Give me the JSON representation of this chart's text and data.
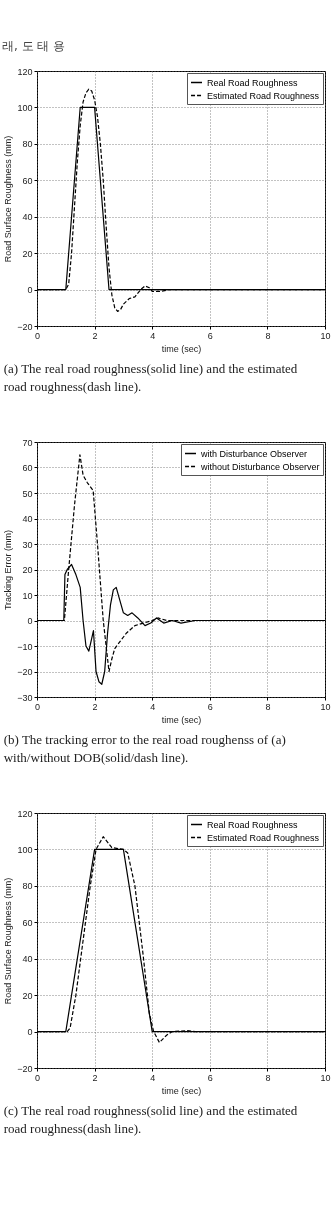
{
  "chart_data": [
    {
      "type": "line",
      "xlabel": "time (sec)",
      "ylabel": "Road Surface Roughness (mm)",
      "xlim": [
        0,
        10
      ],
      "ylim": [
        -20,
        120
      ],
      "xticks": [
        0,
        2,
        4,
        6,
        8,
        10
      ],
      "yticks": [
        -20,
        0,
        20,
        40,
        60,
        80,
        100,
        120
      ],
      "grid": true,
      "legend": "top right",
      "series": [
        {
          "name": "Real Road Roughness",
          "color": "#000000",
          "line_style": "solid",
          "x": [
            0,
            1.0,
            1.5,
            2.0,
            2.5,
            10
          ],
          "values": [
            0,
            0,
            100,
            100,
            0,
            0
          ]
        },
        {
          "name": "Estimated Road Roughness",
          "color": "#000000",
          "line_style": "dashed",
          "x": [
            0,
            1.0,
            1.1,
            1.2,
            1.3,
            1.4,
            1.5,
            1.6,
            1.7,
            1.8,
            1.9,
            2.0,
            2.1,
            2.2,
            2.3,
            2.4,
            2.5,
            2.6,
            2.7,
            2.8,
            2.9,
            3.0,
            3.2,
            3.4,
            3.6,
            3.75,
            3.9,
            4.0,
            4.3,
            4.6,
            5.0,
            10
          ],
          "values": [
            0,
            0,
            3,
            20,
            45,
            70,
            90,
            103,
            108,
            110,
            109,
            104,
            95,
            80,
            60,
            35,
            12,
            -3,
            -10,
            -12,
            -11,
            -8,
            -5,
            -4,
            0,
            2,
            1,
            -1,
            -1,
            0,
            0,
            0
          ]
        }
      ],
      "annotations": [
        "래, 도 태 용",
        "(a) The real road roughness(solid line) and the estimated road roughness(dash line)."
      ]
    },
    {
      "type": "line",
      "xlabel": "time (sec)",
      "ylabel": "Tracking Error (mm)",
      "xlim": [
        0,
        10
      ],
      "ylim": [
        -30,
        70
      ],
      "xticks": [
        0,
        2,
        4,
        6,
        8,
        10
      ],
      "yticks": [
        -30,
        -20,
        -10,
        0,
        10,
        20,
        30,
        40,
        50,
        60,
        70
      ],
      "grid": true,
      "legend": "top right",
      "series": [
        {
          "name": "with Disturbance Observer",
          "color": "#000000",
          "line_style": "solid",
          "x": [
            0,
            0.93,
            0.97,
            1.05,
            1.2,
            1.35,
            1.5,
            1.6,
            1.7,
            1.8,
            1.9,
            1.96,
            2.05,
            2.15,
            2.25,
            2.35,
            2.45,
            2.55,
            2.65,
            2.75,
            2.85,
            3.0,
            3.15,
            3.3,
            3.5,
            3.75,
            3.95,
            4.15,
            4.4,
            4.7,
            5.0,
            5.5,
            10
          ],
          "values": [
            0,
            0,
            18,
            20,
            22,
            18,
            13,
            0,
            -10,
            -12,
            -7,
            -4,
            -20,
            -24,
            -25,
            -20,
            -5,
            6,
            12,
            13,
            9,
            3,
            2,
            3,
            1,
            -2,
            -1,
            1,
            -1,
            0,
            -1,
            0,
            0
          ]
        },
        {
          "name": "without Disturbance Observer",
          "color": "#000000",
          "line_style": "dashed",
          "x": [
            0,
            0.95,
            1.1,
            1.3,
            1.49,
            1.6,
            1.75,
            1.95,
            2.1,
            2.3,
            2.5,
            2.6,
            2.7,
            2.9,
            3.1,
            3.4,
            3.7,
            4.0,
            4.2,
            4.5,
            5.0,
            10
          ],
          "values": [
            0,
            0,
            20,
            45,
            65,
            57,
            54,
            51,
            30,
            0,
            -20,
            -15,
            -11,
            -8,
            -5,
            -2,
            -1,
            0,
            1,
            0,
            0,
            0
          ]
        }
      ],
      "annotations": [
        "(b) The tracking error to the real road roughenss of (a) with/without DOB(solid/dash line)."
      ]
    },
    {
      "type": "line",
      "xlabel": "time (sec)",
      "ylabel": "Road Surface Roughness (mm)",
      "xlim": [
        0,
        10
      ],
      "ylim": [
        -20,
        120
      ],
      "xticks": [
        0,
        2,
        4,
        6,
        8,
        10
      ],
      "yticks": [
        -20,
        0,
        20,
        40,
        60,
        80,
        100,
        120
      ],
      "grid": true,
      "legend": "top right",
      "series": [
        {
          "name": "Real Road Roughness",
          "color": "#000000",
          "line_style": "solid",
          "x": [
            0,
            1.0,
            2.0,
            3.0,
            4.0,
            10
          ],
          "values": [
            0,
            0,
            100,
            100,
            0,
            0
          ]
        },
        {
          "name": "Estimated Road Roughness",
          "color": "#000000",
          "line_style": "dashed",
          "x": [
            0,
            1.05,
            1.15,
            1.35,
            1.6,
            1.85,
            2.05,
            2.3,
            2.6,
            3.0,
            3.15,
            3.4,
            3.7,
            3.9,
            4.05,
            4.25,
            4.5,
            4.7,
            5.2,
            5.5,
            10
          ],
          "values": [
            0,
            0,
            2,
            20,
            50,
            80,
            100,
            107,
            101,
            100,
            98,
            80,
            40,
            10,
            0,
            -6,
            -2,
            0,
            0.5,
            0,
            0
          ]
        }
      ],
      "annotations": [
        "(c) The real road roughness(solid line) and the estimated road roughness(dash line)."
      ]
    }
  ]
}
